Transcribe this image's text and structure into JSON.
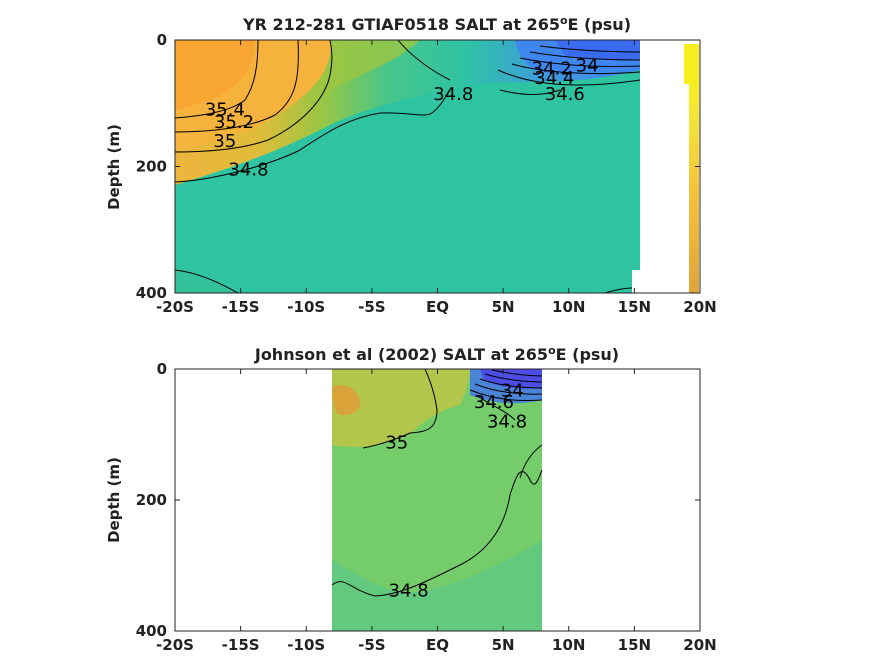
{
  "chart_data": [
    {
      "type": "contour",
      "title_main": "YR 212-281 GTIAF0518 SALT at 265",
      "title_sup": "o",
      "title_end": "E (psu)",
      "ylabel": "Depth (m)",
      "xlim": [
        -20,
        20
      ],
      "ylim": [
        400,
        0
      ],
      "xticks": [
        {
          "value": -20,
          "label": "-20S"
        },
        {
          "value": -15,
          "label": "-15S"
        },
        {
          "value": -10,
          "label": "-10S"
        },
        {
          "value": -5,
          "label": "-5S"
        },
        {
          "value": 0,
          "label": "EQ"
        },
        {
          "value": 5,
          "label": "5N"
        },
        {
          "value": 10,
          "label": "10N"
        },
        {
          "value": 15,
          "label": "15N"
        },
        {
          "value": 20,
          "label": "20N"
        }
      ],
      "yticks": [
        {
          "value": 0,
          "label": "0"
        },
        {
          "value": 200,
          "label": "200"
        },
        {
          "value": 400,
          "label": "400"
        }
      ],
      "contour_labels": [
        {
          "text": "35.4",
          "lat": -16.2,
          "depth": 110
        },
        {
          "text": "35.2",
          "lat": -15.5,
          "depth": 130
        },
        {
          "text": "35",
          "lat": -16.2,
          "depth": 160
        },
        {
          "text": "34.8",
          "lat": -14.4,
          "depth": 205
        },
        {
          "text": "34.8",
          "lat": 1.2,
          "depth": 85
        },
        {
          "text": "34.6",
          "lat": 9.7,
          "depth": 85
        },
        {
          "text": "34.4",
          "lat": 8.9,
          "depth": 60
        },
        {
          "text": "34.2",
          "lat": 8.7,
          "depth": 45
        },
        {
          "text": "34",
          "lat": 11.4,
          "depth": 40
        }
      ]
    },
    {
      "type": "contour",
      "title_main": "Johnson et al (2002) SALT at 265",
      "title_sup": "o",
      "title_end": "E (psu)",
      "ylabel": "Depth (m)",
      "xlim": [
        -20,
        20
      ],
      "ylim": [
        400,
        0
      ],
      "xticks": [
        {
          "value": -20,
          "label": "-20S"
        },
        {
          "value": -15,
          "label": "-15S"
        },
        {
          "value": -10,
          "label": "-10S"
        },
        {
          "value": -5,
          "label": "-5S"
        },
        {
          "value": 0,
          "label": "EQ"
        },
        {
          "value": 5,
          "label": "5N"
        },
        {
          "value": 10,
          "label": "10N"
        },
        {
          "value": 15,
          "label": "15N"
        },
        {
          "value": 20,
          "label": "20N"
        }
      ],
      "yticks": [
        {
          "value": 0,
          "label": "0"
        },
        {
          "value": 200,
          "label": "200"
        },
        {
          "value": 400,
          "label": "400"
        }
      ],
      "data_extent_lat": [
        -8,
        8
      ],
      "contour_labels": [
        {
          "text": "35",
          "lat": -3.1,
          "depth": 112
        },
        {
          "text": "34.8",
          "lat": -2.2,
          "depth": 338
        },
        {
          "text": "34.6",
          "lat": 4.3,
          "depth": 50
        },
        {
          "text": "34.8",
          "lat": 5.3,
          "depth": 80
        },
        {
          "text": "34",
          "lat": 5.7,
          "depth": 33
        }
      ]
    }
  ]
}
